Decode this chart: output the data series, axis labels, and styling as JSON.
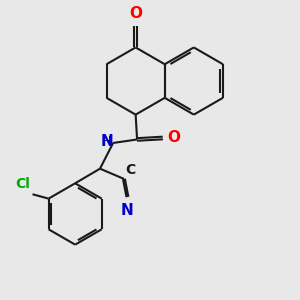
{
  "bg_color": "#e8e8e8",
  "bond_color": "#1a1a1a",
  "atom_colors": {
    "O": "#ff0000",
    "N": "#0000cd",
    "Cl": "#00aa00",
    "C": "#1a1a1a"
  },
  "line_width": 1.5,
  "dbo": 0.035
}
